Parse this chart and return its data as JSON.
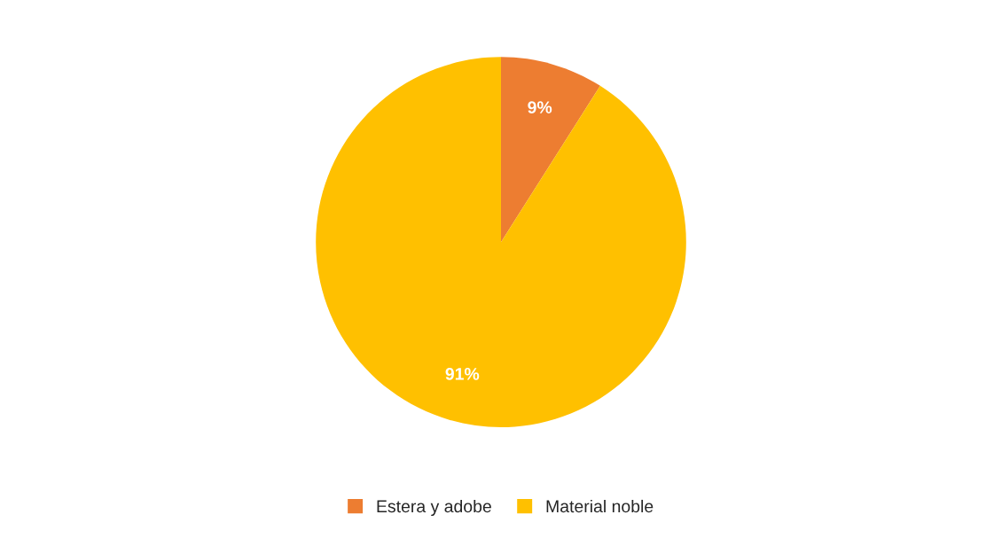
{
  "chart_data": {
    "type": "pie",
    "categories": [
      "Estera y adobe",
      "Material noble"
    ],
    "values": [
      9,
      91
    ],
    "colors": [
      "#ed7d31",
      "#ffc000"
    ],
    "value_labels": [
      "9%",
      "91%"
    ],
    "legend": "bottom"
  }
}
